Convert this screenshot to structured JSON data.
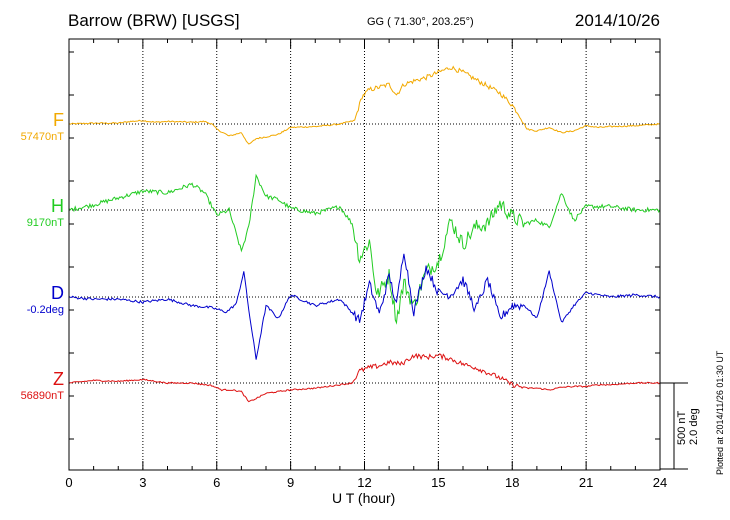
{
  "header": {
    "station": "Barrow (BRW)  [USGS]",
    "coords": "GG ( 71.30°, 203.25°)",
    "date": "2014/10/26"
  },
  "components": [
    {
      "letter": "F",
      "baseline": "57470nT",
      "color": "#f2a900"
    },
    {
      "letter": "H",
      "baseline": "9170nT",
      "color": "#22cc22"
    },
    {
      "letter": "D",
      "baseline": "-0.2deg",
      "color": "#0000cc"
    },
    {
      "letter": "Z",
      "baseline": "56890nT",
      "color": "#dd1111"
    }
  ],
  "scale": {
    "nt": "500 nT",
    "deg": "2.0 deg"
  },
  "plotted": "Plotted at 2014/11/26 01:30 UT",
  "chart_data": {
    "type": "line",
    "xlabel": "U T (hour)",
    "xlim": [
      0,
      24
    ],
    "xticks": [
      0,
      3,
      6,
      9,
      12,
      15,
      18,
      21,
      24
    ],
    "series": [
      {
        "name": "F",
        "baseline": "57470nT",
        "color": "#f2a900",
        "points": [
          [
            0,
            0
          ],
          [
            1,
            5
          ],
          [
            2,
            5
          ],
          [
            2.5,
            15
          ],
          [
            3,
            20
          ],
          [
            3.5,
            10
          ],
          [
            4,
            15
          ],
          [
            5,
            10
          ],
          [
            5.5,
            15
          ],
          [
            5.8,
            0
          ],
          [
            6,
            -30
          ],
          [
            6.5,
            -70
          ],
          [
            7,
            -50
          ],
          [
            7.3,
            -120
          ],
          [
            7.6,
            -85
          ],
          [
            8,
            -75
          ],
          [
            8.5,
            -60
          ],
          [
            9,
            -20
          ],
          [
            10,
            -15
          ],
          [
            11,
            0
          ],
          [
            11.6,
            20
          ],
          [
            11.9,
            160
          ],
          [
            12.2,
            200
          ],
          [
            12.5,
            210
          ],
          [
            13,
            230
          ],
          [
            13.3,
            170
          ],
          [
            13.6,
            230
          ],
          [
            14,
            250
          ],
          [
            14.5,
            270
          ],
          [
            15,
            300
          ],
          [
            15.5,
            330
          ],
          [
            16,
            300
          ],
          [
            16.5,
            260
          ],
          [
            17,
            220
          ],
          [
            17.5,
            180
          ],
          [
            18,
            110
          ],
          [
            18.3,
            50
          ],
          [
            18.6,
            -30
          ],
          [
            19,
            -40
          ],
          [
            19.5,
            -20
          ],
          [
            20,
            -50
          ],
          [
            20.5,
            -40
          ],
          [
            21,
            -10
          ],
          [
            21.5,
            -20
          ],
          [
            22,
            -15
          ],
          [
            23,
            -10
          ],
          [
            24,
            0
          ]
        ]
      },
      {
        "name": "H",
        "baseline": "9170nT",
        "color": "#22cc22",
        "points": [
          [
            0,
            0
          ],
          [
            1,
            30
          ],
          [
            2,
            70
          ],
          [
            3,
            110
          ],
          [
            4,
            100
          ],
          [
            5,
            150
          ],
          [
            5.5,
            100
          ],
          [
            6,
            -30
          ],
          [
            6.5,
            0
          ],
          [
            7,
            -240
          ],
          [
            7.3,
            -100
          ],
          [
            7.6,
            200
          ],
          [
            8,
            80
          ],
          [
            8.5,
            60
          ],
          [
            9,
            10
          ],
          [
            10,
            -20
          ],
          [
            11,
            20
          ],
          [
            11.5,
            -80
          ],
          [
            11.8,
            -280
          ],
          [
            12.2,
            -180
          ],
          [
            12.5,
            -500
          ],
          [
            13,
            -380
          ],
          [
            13.3,
            -640
          ],
          [
            13.6,
            -420
          ],
          [
            14,
            -560
          ],
          [
            14.5,
            -360
          ],
          [
            15,
            -300
          ],
          [
            15.5,
            -60
          ],
          [
            16,
            -200
          ],
          [
            16.5,
            -100
          ],
          [
            17,
            -80
          ],
          [
            17.5,
            40
          ],
          [
            18,
            -40
          ],
          [
            18.5,
            -80
          ],
          [
            19,
            -60
          ],
          [
            19.5,
            -100
          ],
          [
            20,
            100
          ],
          [
            20.5,
            -60
          ],
          [
            21,
            20
          ],
          [
            22,
            20
          ],
          [
            23,
            0
          ],
          [
            24,
            0
          ]
        ]
      },
      {
        "name": "D",
        "baseline": "-0.2deg",
        "color": "#0000cc",
        "points": [
          [
            0,
            0
          ],
          [
            1,
            -0.05
          ],
          [
            2,
            -0.05
          ],
          [
            3,
            -0.12
          ],
          [
            4,
            -0.05
          ],
          [
            5,
            -0.2
          ],
          [
            5.8,
            -0.25
          ],
          [
            6.4,
            -0.35
          ],
          [
            6.8,
            -0.15
          ],
          [
            7.1,
            0.6
          ],
          [
            7.3,
            -0.3
          ],
          [
            7.6,
            -1.45
          ],
          [
            8,
            -0.2
          ],
          [
            8.5,
            -0.5
          ],
          [
            9,
            0.05
          ],
          [
            10,
            -0.2
          ],
          [
            11,
            -0.05
          ],
          [
            11.8,
            -0.55
          ],
          [
            12.2,
            0.3
          ],
          [
            12.6,
            -0.4
          ],
          [
            13,
            0.5
          ],
          [
            13.3,
            -0.2
          ],
          [
            13.6,
            1.1
          ],
          [
            14,
            -0.35
          ],
          [
            14.5,
            0.7
          ],
          [
            15,
            0.1
          ],
          [
            15.5,
            0.05
          ],
          [
            16,
            0.4
          ],
          [
            16.5,
            -0.3
          ],
          [
            17,
            0.4
          ],
          [
            17.5,
            -0.5
          ],
          [
            18,
            -0.2
          ],
          [
            18.5,
            -0.2
          ],
          [
            19,
            -0.5
          ],
          [
            19.5,
            0.6
          ],
          [
            20,
            -0.6
          ],
          [
            20.5,
            -0.2
          ],
          [
            21,
            0.1
          ],
          [
            22,
            0
          ],
          [
            23,
            0.05
          ],
          [
            24,
            0
          ]
        ]
      },
      {
        "name": "Z",
        "baseline": "56890nT",
        "color": "#dd1111",
        "points": [
          [
            0,
            0
          ],
          [
            1,
            15
          ],
          [
            2,
            10
          ],
          [
            3,
            20
          ],
          [
            4,
            0
          ],
          [
            5,
            0
          ],
          [
            5.8,
            -15
          ],
          [
            6.2,
            -40
          ],
          [
            6.6,
            -40
          ],
          [
            7,
            -50
          ],
          [
            7.3,
            -110
          ],
          [
            7.6,
            -90
          ],
          [
            8,
            -60
          ],
          [
            8.5,
            -50
          ],
          [
            9,
            -40
          ],
          [
            10,
            -30
          ],
          [
            11,
            -10
          ],
          [
            11.5,
            0
          ],
          [
            11.8,
            70
          ],
          [
            12.2,
            90
          ],
          [
            12.6,
            100
          ],
          [
            13,
            120
          ],
          [
            13.5,
            110
          ],
          [
            14,
            160
          ],
          [
            14.5,
            150
          ],
          [
            15,
            160
          ],
          [
            15.5,
            140
          ],
          [
            16,
            110
          ],
          [
            16.5,
            90
          ],
          [
            17,
            60
          ],
          [
            17.5,
            30
          ],
          [
            18,
            -10
          ],
          [
            18.3,
            -20
          ],
          [
            18.6,
            -30
          ],
          [
            19,
            -30
          ],
          [
            19.5,
            -40
          ],
          [
            20,
            -25
          ],
          [
            20.5,
            -20
          ],
          [
            21,
            -20
          ],
          [
            21.5,
            -10
          ],
          [
            22,
            -10
          ],
          [
            23,
            0
          ],
          [
            24,
            0
          ]
        ]
      }
    ]
  }
}
